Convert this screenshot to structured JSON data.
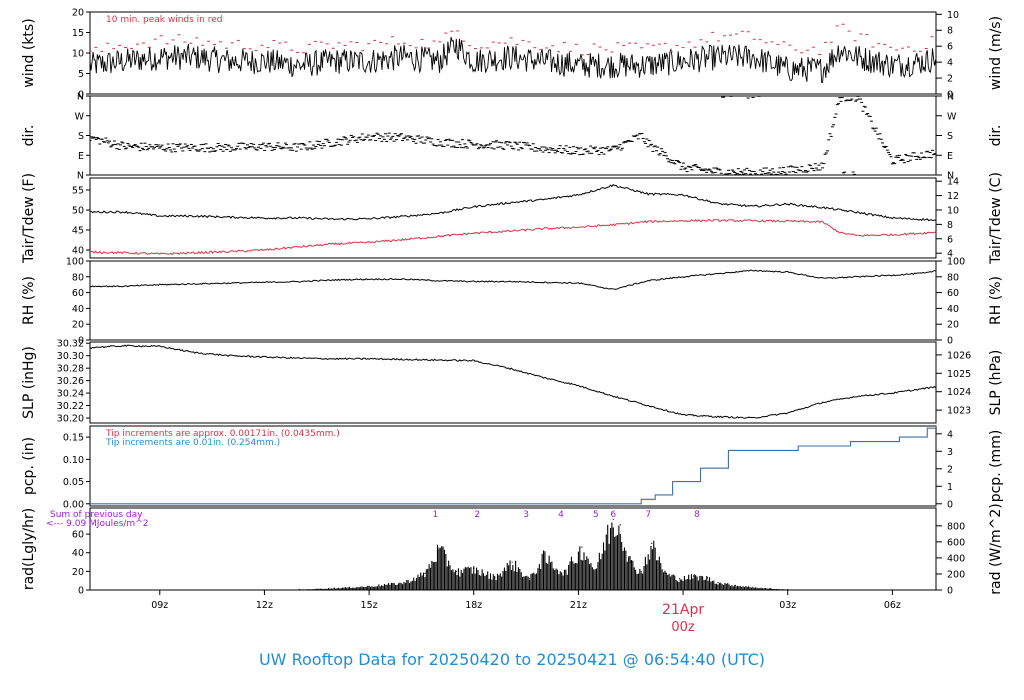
{
  "chart_data": {
    "type": "line",
    "title": "UW Rooftop Data for 20250420  to  20250421 @ 06:54:40  (UTC)",
    "x_axis": {
      "range_hours": [
        7.0,
        31.25
      ],
      "ticks": [
        {
          "hour": 9,
          "label": "09z"
        },
        {
          "hour": 12,
          "label": "12z"
        },
        {
          "hour": 15,
          "label": "15z"
        },
        {
          "hour": 18,
          "label": "18z"
        },
        {
          "hour": 21,
          "label": "21z"
        },
        {
          "hour": 24,
          "label": "00z"
        },
        {
          "hour": 27,
          "label": "03z"
        },
        {
          "hour": 30,
          "label": "06z"
        }
      ],
      "date_marker": {
        "hour": 24,
        "date": "21Apr",
        "label": "00z"
      }
    },
    "panels": [
      {
        "id": "wind",
        "left_label": "wind (kts)",
        "right_label": "wind (m/s)",
        "ylim": [
          0,
          20
        ],
        "yticks": [
          "0",
          "5",
          "10",
          "15",
          "20"
        ],
        "right_ylim": [
          0,
          10.29
        ],
        "right_ticks": [
          "0",
          "2",
          "4",
          "6",
          "8",
          "10"
        ],
        "note": "10 min. peak winds in red",
        "series": [
          {
            "name": "wind",
            "color": "#000000",
            "hours": [
              7.0,
              8.0,
              9.0,
              10.0,
              11.0,
              12.0,
              13.0,
              14.0,
              15.0,
              16.0,
              17.0,
              17.5,
              18.0,
              19.0,
              20.0,
              21.0,
              22.0,
              23.0,
              24.0,
              25.0,
              26.0,
              27.0,
              28.0,
              28.5,
              29.0,
              30.0,
              31.0,
              31.25
            ],
            "values": [
              7,
              8,
              9,
              9,
              8,
              8,
              7,
              8,
              8,
              9,
              8,
              12,
              8,
              9,
              8,
              7,
              7,
              7,
              8,
              9,
              9,
              6,
              6,
              11,
              9,
              7,
              8,
              9
            ]
          },
          {
            "name": "peak",
            "color": "#d8344a",
            "hours": [
              7.0,
              8.0,
              9.0,
              10.0,
              11.0,
              12.0,
              13.0,
              14.0,
              15.0,
              16.0,
              17.0,
              17.5,
              18.0,
              19.0,
              20.0,
              21.0,
              22.0,
              23.0,
              24.0,
              25.0,
              26.0,
              27.0,
              28.0,
              28.5,
              29.0,
              30.0,
              31.0,
              31.25
            ],
            "values": [
              10,
              12,
              13,
              13,
              12,
              12,
              11,
              12,
              12,
              13,
              12,
              16,
              12,
              13,
              12,
              11,
              11,
              11,
              12,
              14,
              14,
              11,
              11,
              16,
              14,
              11,
              12,
              13
            ]
          }
        ]
      },
      {
        "id": "dir",
        "left_label": "dir.",
        "right_label": "dir.",
        "ylim": [
          0,
          360
        ],
        "yticks": [
          "N",
          "E",
          "S",
          "W",
          "N"
        ],
        "right_ticks": [
          "N",
          "E",
          "S",
          "W",
          "N"
        ],
        "series": [
          {
            "name": "dir",
            "color": "#000000",
            "style": "dash",
            "hours": [
              7.0,
              8.0,
              9.0,
              10.0,
              11.0,
              12.0,
              13.0,
              14.0,
              15.0,
              16.0,
              17.0,
              18.0,
              19.0,
              20.0,
              21.0,
              22.0,
              22.8,
              23.0,
              23.5,
              24.0,
              25.0,
              26.0,
              27.0,
              28.0,
              28.5,
              29.0,
              30.0,
              31.0,
              31.25
            ],
            "values": [
              170,
              130,
              125,
              125,
              125,
              130,
              125,
              150,
              175,
              170,
              150,
              140,
              135,
              120,
              110,
              115,
              180,
              140,
              90,
              35,
              15,
              10,
              20,
              40,
              355,
              355,
              65,
              95,
              100
            ]
          }
        ]
      },
      {
        "id": "temp",
        "left_label": "Tair/Tdew (F)",
        "right_label": "Tair/Tdew (C)",
        "ylim": [
          38,
          58
        ],
        "yticks": [
          "40",
          "45",
          "50",
          "55"
        ],
        "right_ylim": [
          3.33,
          14.44
        ],
        "right_ticks": [
          "4",
          "6",
          "8",
          "10",
          "12",
          "14"
        ],
        "series": [
          {
            "name": "Tair",
            "color": "#000000",
            "hours": [
              7.0,
              8.0,
              9.0,
              10.0,
              11.0,
              12.0,
              13.0,
              14.0,
              15.0,
              16.0,
              17.0,
              18.0,
              19.0,
              20.0,
              21.0,
              22.0,
              23.0,
              24.0,
              25.0,
              26.0,
              27.0,
              28.0,
              29.0,
              30.0,
              31.0,
              31.25
            ],
            "values": [
              49.5,
              49.5,
              48.5,
              48.5,
              48.2,
              48.0,
              48.0,
              47.7,
              47.8,
              48.4,
              49.2,
              50.8,
              51.8,
              52.6,
              53.8,
              56.2,
              54.0,
              53.8,
              51.6,
              50.9,
              51.5,
              50.6,
              49.4,
              48.0,
              47.6,
              47.3
            ]
          },
          {
            "name": "Tdew",
            "color": "#d8344a",
            "hours": [
              7.0,
              8.0,
              9.0,
              10.0,
              11.0,
              12.0,
              13.0,
              14.0,
              15.0,
              16.0,
              17.0,
              18.0,
              19.0,
              20.0,
              21.0,
              22.0,
              23.0,
              24.0,
              25.0,
              26.0,
              27.0,
              28.0,
              28.5,
              29.0,
              30.0,
              31.0,
              31.25
            ],
            "values": [
              39.5,
              39.3,
              39.0,
              39.3,
              39.6,
              40.0,
              40.8,
              41.5,
              41.9,
              42.6,
              43.4,
              44.2,
              44.7,
              45.3,
              45.7,
              46.3,
              47.1,
              47.3,
              47.4,
              47.3,
              47.2,
              47.0,
              44.3,
              43.6,
              43.8,
              44.3,
              44.5
            ]
          }
        ]
      },
      {
        "id": "rh",
        "left_label": "RH (%)",
        "right_label": "RH (%)",
        "ylim": [
          0,
          100
        ],
        "yticks": [
          "0",
          "20",
          "40",
          "60",
          "80",
          "100"
        ],
        "right_ylim": [
          0,
          100
        ],
        "right_ticks": [
          "0",
          "20",
          "40",
          "60",
          "80",
          "100"
        ],
        "series": [
          {
            "name": "RH",
            "color": "#000000",
            "hours": [
              7.0,
              8.0,
              9.0,
              10.0,
              11.0,
              12.0,
              13.0,
              14.0,
              15.0,
              16.0,
              17.0,
              18.0,
              19.0,
              20.0,
              21.0,
              22.0,
              23.0,
              24.0,
              25.0,
              26.0,
              27.0,
              28.0,
              29.0,
              30.0,
              31.0,
              31.25
            ],
            "values": [
              68,
              68,
              70,
              71,
              72,
              73,
              74,
              76,
              77,
              77,
              75,
              74,
              74,
              73,
              72,
              64,
              75,
              80,
              84,
              88,
              86,
              78,
              80,
              82,
              85,
              88
            ]
          }
        ]
      },
      {
        "id": "slp",
        "left_label": "SLP (inHg)",
        "right_label": "SLP (hPa)",
        "ylim": [
          30.192,
          30.322
        ],
        "yticks": [
          "30.20",
          "30.22",
          "30.24",
          "30.26",
          "30.28",
          "30.30",
          "30.32"
        ],
        "right_ylim": [
          1022.3,
          1026.7
        ],
        "right_ticks": [
          "1023",
          "1024",
          "1025",
          "1026"
        ],
        "series": [
          {
            "name": "SLP",
            "color": "#000000",
            "hours": [
              7.0,
              8.0,
              9.0,
              10.0,
              11.0,
              12.0,
              13.0,
              14.0,
              15.0,
              16.0,
              17.0,
              18.0,
              19.0,
              20.0,
              21.0,
              22.0,
              23.0,
              24.0,
              25.0,
              26.0,
              27.0,
              28.0,
              29.0,
              30.0,
              31.0,
              31.25
            ],
            "values": [
              30.313,
              30.316,
              30.315,
              30.305,
              30.3,
              30.298,
              30.296,
              30.295,
              30.295,
              30.294,
              30.293,
              30.292,
              30.28,
              30.265,
              30.252,
              30.235,
              30.22,
              30.205,
              30.202,
              30.2,
              30.208,
              30.225,
              30.235,
              30.24,
              30.248,
              30.25
            ]
          }
        ]
      },
      {
        "id": "pcp",
        "left_label": "pcp. (in)",
        "right_label": "pcp. (mm)",
        "ylim": [
          -0.005,
          0.175
        ],
        "yticks": [
          "0.00",
          "0.05",
          "0.10",
          "0.15"
        ],
        "right_ylim": [
          -0.127,
          4.445
        ],
        "right_ticks": [
          "0",
          "1",
          "2",
          "3",
          "4"
        ],
        "notes": [
          {
            "text": "Tip increments are approx. 0.00171in. (0.0435mm.)",
            "color": "#d8344a"
          },
          {
            "text": "Tip increments are 0.01in. (0.254mm.)",
            "color": "#1e8fd6"
          }
        ],
        "series": [
          {
            "name": "pcp",
            "color": "#3f6fa8",
            "style": "step",
            "hours": [
              7.0,
              22.4,
              22.8,
              23.2,
              23.7,
              24.5,
              25.3,
              26.2,
              27.3,
              28.8,
              29.8,
              30.2,
              30.6,
              31.0,
              31.25
            ],
            "values": [
              0.0,
              0.0,
              0.01,
              0.02,
              0.05,
              0.08,
              0.12,
              0.12,
              0.13,
              0.14,
              0.14,
              0.15,
              0.15,
              0.17,
              0.175
            ]
          }
        ]
      },
      {
        "id": "rad",
        "left_label": "rad(Lgly/hr)",
        "right_label": "rad (W/m^2)",
        "ylim": [
          0,
          88
        ],
        "yticks": [
          "0",
          "20",
          "40",
          "60"
        ],
        "right_ylim": [
          0,
          1022
        ],
        "right_ticks": [
          "0",
          "200",
          "400",
          "600",
          "800"
        ],
        "notes": [
          {
            "text": "Sum of previous day",
            "color": "#9d1fd6"
          },
          {
            "text": "<--- 9.09 MJoules/m^2",
            "color": "#9d1fd6"
          }
        ],
        "markers": [
          {
            "hour": 16.9,
            "label": "1"
          },
          {
            "hour": 18.1,
            "label": "2"
          },
          {
            "hour": 19.5,
            "label": "3"
          },
          {
            "hour": 20.5,
            "label": "4"
          },
          {
            "hour": 21.5,
            "label": "5"
          },
          {
            "hour": 22.0,
            "label": "6"
          },
          {
            "hour": 23.0,
            "label": "7"
          },
          {
            "hour": 24.4,
            "label": "8"
          }
        ],
        "series": [
          {
            "name": "rad",
            "color": "#000000",
            "style": "bars",
            "hours": [
              13.0,
              14.0,
              15.0,
              16.0,
              16.6,
              17.0,
              17.5,
              18.0,
              18.6,
              19.1,
              19.6,
              20.0,
              20.6,
              21.1,
              21.5,
              21.8,
              22.0,
              22.2,
              22.5,
              22.8,
              23.1,
              23.5,
              23.9,
              24.3,
              24.7,
              25.0,
              25.5,
              26.0,
              26.5,
              27.0,
              27.5
            ],
            "values": [
              0.5,
              2,
              4,
              8,
              18,
              45,
              20,
              23,
              14,
              30,
              12,
              36,
              19,
              46,
              22,
              58,
              76,
              70,
              30,
              20,
              50,
              18,
              12,
              15,
              13,
              8,
              5,
              3,
              1.5,
              0.5,
              0
            ]
          }
        ]
      }
    ]
  }
}
